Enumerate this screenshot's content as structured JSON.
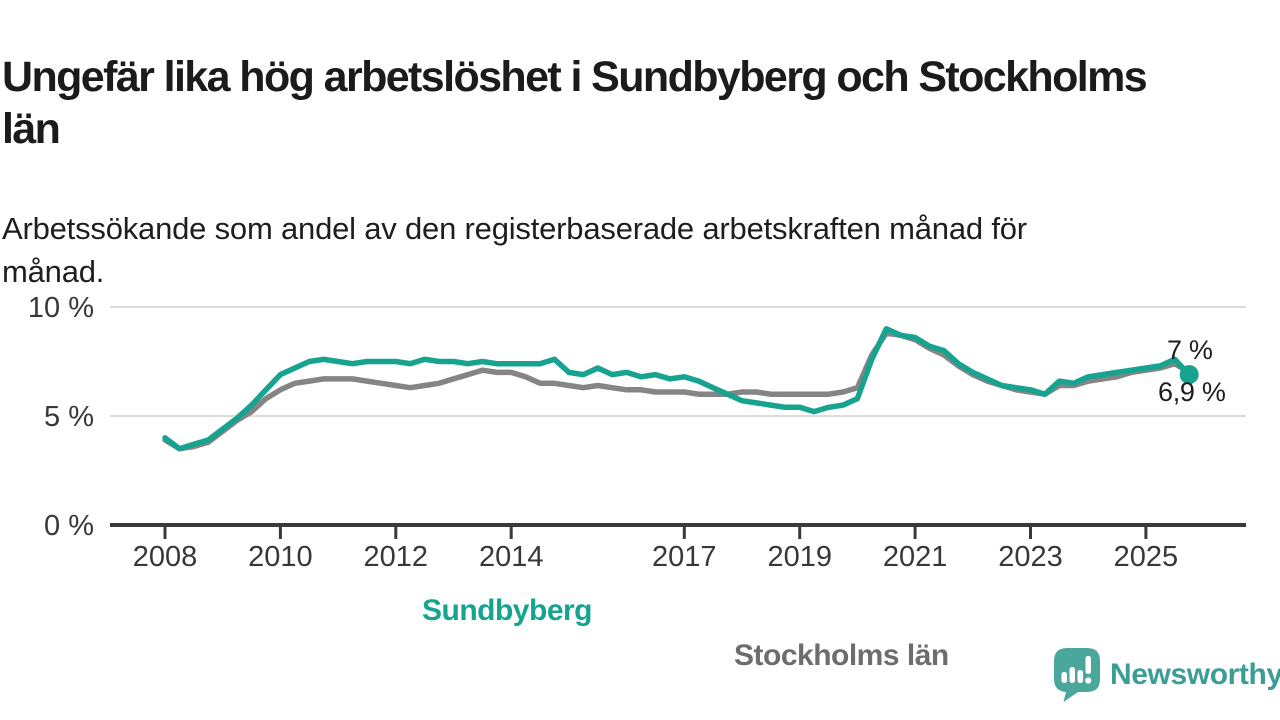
{
  "chart_data": {
    "type": "line",
    "title": "Ungefär lika hög arbetslöshet i Sundbyberg och Stockholms län",
    "title_lines": [
      "Ungefär lika hög arbetslöshet i Sundbyberg och Stockholms",
      "län"
    ],
    "subtitle": "Arbetssökande som andel av den registerbaserade arbetskraften månad för månad.",
    "subtitle_lines": [
      "Arbetssökande som andel av den registerbaserade arbetskraften månad för",
      "månad."
    ],
    "legend": "inline-labels-on-lines",
    "grid": "horizontal",
    "y_axis": {
      "unit": "%",
      "range": [
        0,
        10
      ],
      "ticks": [
        {
          "value": 0,
          "label": "0 %"
        },
        {
          "value": 5,
          "label": "5 %"
        },
        {
          "value": 10,
          "label": "10 %"
        }
      ]
    },
    "x_axis": {
      "range_years": [
        2007.0,
        2026.8
      ],
      "ticks": [
        {
          "value": 2008,
          "label": "2008"
        },
        {
          "value": 2010,
          "label": "2010"
        },
        {
          "value": 2012,
          "label": "2012"
        },
        {
          "value": 2014,
          "label": "2014"
        },
        {
          "value": 2017,
          "label": "2017"
        },
        {
          "value": 2019,
          "label": "2019"
        },
        {
          "value": 2021,
          "label": "2021"
        },
        {
          "value": 2023,
          "label": "2023"
        },
        {
          "value": 2025,
          "label": "2025"
        }
      ]
    },
    "x": [
      2008,
      2008.25,
      2008.5,
      2008.75,
      2009,
      2009.25,
      2009.5,
      2009.75,
      2010,
      2010.25,
      2010.5,
      2010.75,
      2011,
      2011.25,
      2011.5,
      2011.75,
      2012,
      2012.25,
      2012.5,
      2012.75,
      2013,
      2013.25,
      2013.5,
      2013.75,
      2014,
      2014.25,
      2014.5,
      2014.75,
      2015,
      2015.25,
      2015.5,
      2015.75,
      2016,
      2016.25,
      2016.5,
      2016.75,
      2017,
      2017.25,
      2017.5,
      2017.75,
      2018,
      2018.25,
      2018.5,
      2018.75,
      2019,
      2019.25,
      2019.5,
      2019.75,
      2020,
      2020.25,
      2020.5,
      2020.75,
      2021,
      2021.25,
      2021.5,
      2021.75,
      2022,
      2022.25,
      2022.5,
      2022.75,
      2023,
      2023.25,
      2023.5,
      2023.75,
      2024,
      2024.25,
      2024.5,
      2024.75,
      2025,
      2025.25,
      2025.5,
      2025.75
    ],
    "series": [
      {
        "name": "Sundbyberg",
        "color": "#16A38F",
        "end_value_label": "6,9 %",
        "end_value": 6.9,
        "end_dot": true,
        "values": [
          4.0,
          3.5,
          3.7,
          3.9,
          4.4,
          4.9,
          5.5,
          6.2,
          6.9,
          7.2,
          7.5,
          7.6,
          7.5,
          7.4,
          7.5,
          7.5,
          7.5,
          7.4,
          7.6,
          7.5,
          7.5,
          7.4,
          7.5,
          7.4,
          7.4,
          7.4,
          7.4,
          7.6,
          7.0,
          6.9,
          7.2,
          6.9,
          7.0,
          6.8,
          6.9,
          6.7,
          6.8,
          6.6,
          6.3,
          6.0,
          5.7,
          5.6,
          5.5,
          5.4,
          5.4,
          5.2,
          5.4,
          5.5,
          5.8,
          7.6,
          9.0,
          8.7,
          8.6,
          8.2,
          8.0,
          7.4,
          7.0,
          6.7,
          6.4,
          6.3,
          6.2,
          6.0,
          6.6,
          6.5,
          6.8,
          6.9,
          7.0,
          7.1,
          7.2,
          7.3,
          7.6,
          6.9
        ]
      },
      {
        "name": "Stockholms län",
        "color": "#858585",
        "label_color": "#6d6d6d",
        "end_value_label": "7 %",
        "end_value": 7.0,
        "end_dot": false,
        "values": [
          3.9,
          3.5,
          3.6,
          3.8,
          4.3,
          4.8,
          5.2,
          5.8,
          6.2,
          6.5,
          6.6,
          6.7,
          6.7,
          6.7,
          6.6,
          6.5,
          6.4,
          6.3,
          6.4,
          6.5,
          6.7,
          6.9,
          7.1,
          7.0,
          7.0,
          6.8,
          6.5,
          6.5,
          6.4,
          6.3,
          6.4,
          6.3,
          6.2,
          6.2,
          6.1,
          6.1,
          6.1,
          6.0,
          6.0,
          6.0,
          6.1,
          6.1,
          6.0,
          6.0,
          6.0,
          6.0,
          6.0,
          6.1,
          6.3,
          7.8,
          8.8,
          8.7,
          8.5,
          8.1,
          7.8,
          7.3,
          6.9,
          6.6,
          6.4,
          6.2,
          6.1,
          6.0,
          6.4,
          6.4,
          6.6,
          6.7,
          6.8,
          7.0,
          7.1,
          7.2,
          7.4,
          7.0
        ]
      }
    ],
    "colors": {
      "axis": "#3a3a3a",
      "gridline": "#dcdcdc",
      "tick_text": "#383838"
    }
  },
  "branding": {
    "name": "Newsworthy",
    "icon": "speech-bubble-bar-chart-icon",
    "color": "#3C9D96",
    "icon_color": "#4BA79C"
  }
}
